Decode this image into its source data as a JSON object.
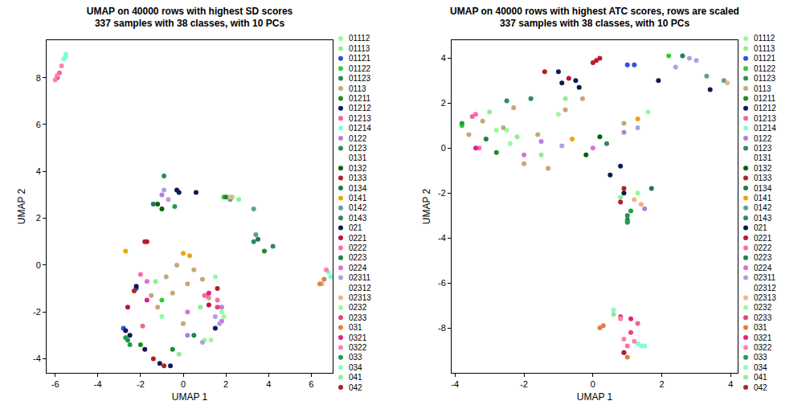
{
  "chart_data": [
    {
      "type": "scatter",
      "title": "UMAP on 40000 rows with highest SD scores",
      "subtitle": "337 samples with 38 classes, with 10 PCs",
      "x_label": "UMAP 1",
      "y_label": "UMAP 2",
      "legend": "right",
      "grid": false,
      "xlim": [
        -6.4,
        7.0
      ],
      "xticks": [
        -6,
        -4,
        -2,
        0,
        2,
        4,
        6
      ],
      "ylim": [
        -4.6,
        9.6
      ],
      "yticks": [
        -4,
        -2,
        0,
        2,
        4,
        6,
        8
      ],
      "series": [
        {
          "name": "01112",
          "color": "#98FB98",
          "x": [
            1.0,
            1.8
          ],
          "y": [
            -3.2,
            -2.0
          ]
        },
        {
          "name": "01113",
          "color": "#90EE90",
          "x": [
            2.0,
            2.3,
            2.6,
            -0.2
          ],
          "y": [
            2.9,
            2.9,
            2.8,
            -3.8
          ]
        },
        {
          "name": "01121",
          "color": "#2E4FE0",
          "x": [
            -2.8,
            -2.2
          ],
          "y": [
            -2.7,
            -1.0
          ]
        },
        {
          "name": "01122",
          "color": "#32CD32",
          "x": [
            1.9,
            -1.0
          ],
          "y": [
            2.9,
            -1.5
          ]
        },
        {
          "name": "01123",
          "color": "#2E8B57",
          "x": [
            -2.6,
            3.3
          ],
          "y": [
            -3.2,
            1.0
          ]
        },
        {
          "name": "0113",
          "color": "#C4A77D",
          "x": [
            -0.8,
            -0.5,
            0.2,
            0.5,
            -1.2,
            -1.5,
            0.9,
            0.0,
            -0.3,
            1.2
          ],
          "y": [
            -0.5,
            -1.2,
            -0.8,
            -0.2,
            -1.8,
            -1.3,
            -0.6,
            -2.5,
            0.0,
            -1.4
          ]
        },
        {
          "name": "01211",
          "color": "#228B22",
          "x": [
            -2.0,
            -0.5,
            3.8
          ],
          "y": [
            -3.4,
            -3.6,
            0.6
          ]
        },
        {
          "name": "01212",
          "color": "#0B1A5C",
          "x": [
            -2.7,
            -1.1,
            -0.6,
            -0.2,
            1.5
          ],
          "y": [
            -2.8,
            -4.2,
            -4.3,
            3.1,
            -2.7
          ]
        },
        {
          "name": "01213",
          "color": "#F0668E",
          "x": [
            -5.8,
            -1.9,
            1.0
          ],
          "y": [
            8.2,
            -2.6,
            -1.3
          ]
        },
        {
          "name": "01214",
          "color": "#7FFFD4",
          "x": [
            -5.6,
            -5.5,
            6.8
          ],
          "y": [
            8.8,
            9.0,
            -0.3
          ]
        },
        {
          "name": "0122",
          "color": "#B57EDC",
          "x": [
            -1.0,
            0.2,
            1.8
          ],
          "y": [
            3.0,
            -3.0,
            -1.8
          ]
        },
        {
          "name": "0123",
          "color": "#2E8B57",
          "x": [
            -0.9
          ],
          "y": [
            3.8
          ]
        },
        {
          "name": "0131",
          "color": "#FFFFFF",
          "x": [],
          "y": []
        },
        {
          "name": "0132",
          "color": "#006400",
          "x": [
            -1.2,
            -1.0
          ],
          "y": [
            2.6,
            2.4
          ]
        },
        {
          "name": "0133",
          "color": "#B22222",
          "x": [
            -1.8,
            1.6,
            -0.9
          ],
          "y": [
            1.0,
            -1.0,
            -4.3
          ]
        },
        {
          "name": "0134",
          "color": "#1F7A4D",
          "x": [
            -1.4,
            3.5
          ],
          "y": [
            2.6,
            1.1
          ]
        },
        {
          "name": "0141",
          "color": "#F0A30A",
          "x": [
            0.0,
            0.3,
            -2.7
          ],
          "y": [
            0.5,
            0.4,
            0.6
          ]
        },
        {
          "name": "0142",
          "color": "#5F9EA0",
          "x": [
            3.4,
            2.2,
            3.3
          ],
          "y": [
            1.3,
            2.8,
            2.4
          ]
        },
        {
          "name": "0143",
          "color": "#2E8B57",
          "x": [
            4.2
          ],
          "y": [
            0.8
          ]
        },
        {
          "name": "021",
          "color": "#0A1A4A",
          "x": [
            -2.5,
            -1.8,
            -0.3,
            0.6,
            -2.2
          ],
          "y": [
            -3.0,
            -3.6,
            3.2,
            3.1,
            -0.9
          ]
        },
        {
          "name": "0221",
          "color": "#C0143C",
          "x": [
            -1.7,
            1.2,
            -2.6
          ],
          "y": [
            1.0,
            -1.7,
            -1.8
          ]
        },
        {
          "name": "0222",
          "color": "#FF69B4",
          "x": [
            1.1,
            1.6,
            -2.0
          ],
          "y": [
            -1.3,
            -1.5,
            -0.4
          ]
        },
        {
          "name": "0223",
          "color": "#1E8449",
          "x": [
            0.5,
            2.0
          ],
          "y": [
            -3.0,
            2.9
          ]
        },
        {
          "name": "0224",
          "color": "#DA70D6",
          "x": [
            0.2,
            -1.7,
            1.8
          ],
          "y": [
            -2.0,
            -0.7,
            -2.4
          ]
        },
        {
          "name": "02311",
          "color": "#B0A0E0",
          "x": [
            -0.7,
            -0.9,
            1.5,
            1.7,
            0.9
          ],
          "y": [
            2.8,
            3.2,
            -2.2,
            -2.5,
            -3.3
          ]
        },
        {
          "name": "02312",
          "color": "#FFFFFF",
          "x": [],
          "y": []
        },
        {
          "name": "02313",
          "color": "#F4B183",
          "x": [
            2.2,
            6.5
          ],
          "y": [
            2.9,
            -0.8
          ]
        },
        {
          "name": "0232",
          "color": "#98FB98",
          "x": [
            1.5,
            1.9,
            -1.0,
            1.3
          ],
          "y": [
            -0.5,
            -2.2,
            -2.2,
            -3.2
          ]
        },
        {
          "name": "0233",
          "color": "#E0457B",
          "x": [
            1.6,
            -5.9
          ],
          "y": [
            -1.8,
            8.0
          ]
        },
        {
          "name": "031",
          "color": "#E08040",
          "x": [
            6.4,
            6.6
          ],
          "y": [
            -0.8,
            -0.6
          ]
        },
        {
          "name": "0321",
          "color": "#E0218A",
          "x": [
            -1.7,
            1.2
          ],
          "y": [
            -1.5,
            -1.2
          ]
        },
        {
          "name": "0322",
          "color": "#FF82AB",
          "x": [
            -6.0,
            -5.9,
            -5.7,
            6.7
          ],
          "y": [
            7.9,
            8.1,
            8.5,
            -0.2
          ]
        },
        {
          "name": "033",
          "color": "#1E9E4E",
          "x": [
            -2.7,
            -2.5,
            -0.4
          ],
          "y": [
            -3.1,
            -3.4,
            2.5
          ]
        },
        {
          "name": "034",
          "color": "#7FFFD4",
          "x": [
            -5.5,
            6.9
          ],
          "y": [
            8.9,
            -0.5
          ]
        },
        {
          "name": "041",
          "color": "#90EE90",
          "x": [
            0.8,
            -1.3
          ],
          "y": [
            -1.8,
            -0.7
          ]
        },
        {
          "name": "042",
          "color": "#B22222",
          "x": [
            -2.3,
            -1.4
          ],
          "y": [
            -1.1,
            -4.0
          ]
        }
      ]
    },
    {
      "type": "scatter",
      "title": "UMAP on 40000 rows with highest ATC scores, rows are scaled",
      "subtitle": "337 samples with 38 classes, with 10 PCs",
      "x_label": "UMAP 1",
      "y_label": "UMAP 2",
      "legend": "right",
      "grid": false,
      "xlim": [
        -4.1,
        4.2
      ],
      "xticks": [
        -4,
        -2,
        0,
        2,
        4
      ],
      "ylim": [
        -10.0,
        4.8
      ],
      "yticks": [
        -8,
        -6,
        -4,
        -2,
        0,
        2,
        4
      ],
      "series": [
        {
          "name": "01112",
          "color": "#98FB98",
          "x": [
            -2.5,
            -1.0
          ],
          "y": [
            0.8,
            1.5
          ]
        },
        {
          "name": "01113",
          "color": "#90EE90",
          "x": [
            -3.0,
            -2.2,
            -1.5,
            0.8
          ],
          "y": [
            1.6,
            0.5,
            -0.3,
            -2.2
          ]
        },
        {
          "name": "01121",
          "color": "#2E4FE0",
          "x": [
            1.0,
            1.2
          ],
          "y": [
            3.7,
            3.7
          ]
        },
        {
          "name": "01122",
          "color": "#32CD32",
          "x": [
            2.2,
            -3.8
          ],
          "y": [
            4.1,
            1.0
          ]
        },
        {
          "name": "01123",
          "color": "#2E8B57",
          "x": [
            -1.8,
            0.4
          ],
          "y": [
            2.2,
            0.2
          ]
        },
        {
          "name": "0113",
          "color": "#C4A77D",
          "x": [
            -3.2,
            -2.6,
            -2.0,
            -1.3,
            -0.8,
            -0.3,
            -3.6,
            -1.6,
            -2.3,
            0.9
          ],
          "y": [
            1.2,
            0.9,
            -0.7,
            -0.9,
            1.7,
            2.2,
            0.6,
            0.6,
            1.8,
            1.1
          ]
        },
        {
          "name": "01211",
          "color": "#228B22",
          "x": [
            -2.8,
            1.0
          ],
          "y": [
            -0.2,
            -3.2
          ]
        },
        {
          "name": "01212",
          "color": "#0B1A5C",
          "x": [
            -1.0,
            -0.5,
            0.8,
            3.4
          ],
          "y": [
            3.4,
            3.0,
            -0.8,
            2.6
          ]
        },
        {
          "name": "01213",
          "color": "#F0668E",
          "x": [
            -3.5,
            1.3
          ],
          "y": [
            1.4,
            -7.8
          ]
        },
        {
          "name": "01214",
          "color": "#7FFFD4",
          "x": [
            1.3,
            1.5
          ],
          "y": [
            -8.7,
            -8.8
          ]
        },
        {
          "name": "0122",
          "color": "#B57EDC",
          "x": [
            -1.5,
            0.9,
            1.5
          ],
          "y": [
            0.3,
            0.7,
            -2.7
          ]
        },
        {
          "name": "0123",
          "color": "#2E8B57",
          "x": [
            -2.5
          ],
          "y": [
            2.1
          ]
        },
        {
          "name": "0131",
          "color": "#FFFFFF",
          "x": [],
          "y": []
        },
        {
          "name": "0132",
          "color": "#006400",
          "x": [
            -0.2,
            0.2
          ],
          "y": [
            -0.3,
            0.5
          ]
        },
        {
          "name": "0133",
          "color": "#B22222",
          "x": [
            -1.4,
            0.2,
            0.9
          ],
          "y": [
            3.4,
            4.0,
            -1.8
          ]
        },
        {
          "name": "0134",
          "color": "#1F7A4D",
          "x": [
            -3.1,
            1.7
          ],
          "y": [
            0.4,
            -1.8
          ]
        },
        {
          "name": "0141",
          "color": "#F0A30A",
          "x": [
            -0.6,
            1.3
          ],
          "y": [
            0.4,
            1.3
          ]
        },
        {
          "name": "0142",
          "color": "#5F9EA0",
          "x": [
            3.3,
            3.8
          ],
          "y": [
            3.2,
            3.0
          ]
        },
        {
          "name": "0143",
          "color": "#2E8B57",
          "x": [
            1.0
          ],
          "y": [
            -3.0
          ]
        },
        {
          "name": "021",
          "color": "#0A1A4A",
          "x": [
            -0.9,
            -0.4,
            0.5,
            0.9,
            1.9
          ],
          "y": [
            2.9,
            2.7,
            -1.2,
            -2.0,
            3.0
          ]
        },
        {
          "name": "0221",
          "color": "#C0143C",
          "x": [
            -0.7,
            0.1,
            0.8
          ],
          "y": [
            3.1,
            3.9,
            -2.4
          ]
        },
        {
          "name": "0222",
          "color": "#FF69B4",
          "x": [
            -3.4,
            -3.3,
            1.0
          ],
          "y": [
            1.5,
            0.0,
            -8.8
          ]
        },
        {
          "name": "0223",
          "color": "#1E8449",
          "x": [
            1.0,
            2.6
          ],
          "y": [
            -3.3,
            4.1
          ]
        },
        {
          "name": "0224",
          "color": "#DA70D6",
          "x": [
            -2.0,
            0.0
          ],
          "y": [
            -0.3,
            0.0
          ]
        },
        {
          "name": "02311",
          "color": "#B0A0E0",
          "x": [
            2.8,
            3.0,
            2.4,
            -0.9,
            1.3
          ],
          "y": [
            4.0,
            3.9,
            3.6,
            0.1,
            0.9
          ]
        },
        {
          "name": "02312",
          "color": "#FFFFFF",
          "x": [],
          "y": []
        },
        {
          "name": "02313",
          "color": "#F4B183",
          "x": [
            1.2,
            1.4,
            3.9
          ],
          "y": [
            -2.3,
            -2.5,
            2.9
          ]
        },
        {
          "name": "0232",
          "color": "#98FB98",
          "x": [
            -2.8,
            -2.4,
            1.3,
            1.6
          ],
          "y": [
            0.8,
            0.2,
            -2.0,
            1.6
          ]
        },
        {
          "name": "0233",
          "color": "#E0457B",
          "x": [
            0.8,
            1.1,
            0.9
          ],
          "y": [
            -7.5,
            -8.2,
            -9.1
          ]
        },
        {
          "name": "031",
          "color": "#E08040",
          "x": [
            0.2,
            1.0,
            0.3
          ],
          "y": [
            -8.0,
            -9.3,
            -7.9
          ]
        },
        {
          "name": "0321",
          "color": "#E0218A",
          "x": [
            -3.4,
            1.1
          ],
          "y": [
            0.0,
            -7.6
          ]
        },
        {
          "name": "0322",
          "color": "#FF82AB",
          "x": [
            0.9,
            1.2,
            0.8
          ],
          "y": [
            -8.5,
            -8.6,
            -7.6
          ]
        },
        {
          "name": "033",
          "color": "#1E9E4E",
          "x": [
            -3.8,
            1.1,
            1.0
          ],
          "y": [
            1.1,
            -2.8,
            -3.3
          ]
        },
        {
          "name": "034",
          "color": "#7FFFD4",
          "x": [
            1.4,
            0.6
          ],
          "y": [
            -8.8,
            -7.2
          ]
        },
        {
          "name": "041",
          "color": "#90EE90",
          "x": [
            -0.8,
            0.6
          ],
          "y": [
            2.2,
            -7.4
          ]
        },
        {
          "name": "042",
          "color": "#B22222",
          "x": [
            0.9,
            0.0
          ],
          "y": [
            -9.1,
            3.8
          ]
        }
      ]
    }
  ]
}
